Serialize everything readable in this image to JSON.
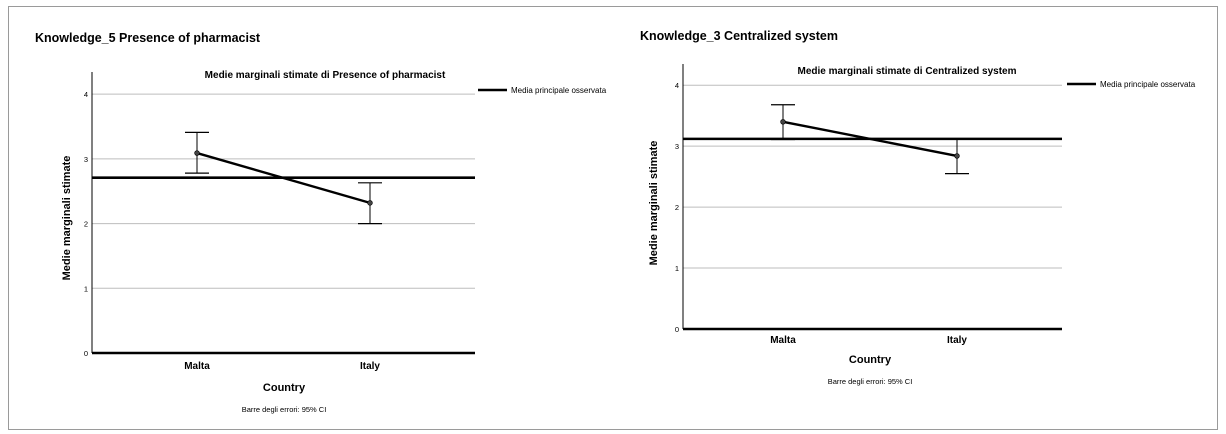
{
  "panels": [
    {
      "heading": "Knowledge_5 Presence of pharmacist",
      "caption": "Barre degli errori: 95% CI",
      "chart_data": {
        "type": "line",
        "title": "Medie marginali stimate di Presence of pharmacist",
        "xlabel": "Country",
        "ylabel": "Medie marginali stimate",
        "categories": [
          "Malta",
          "Italy"
        ],
        "series": [
          {
            "values": [
              3.09,
              2.32
            ],
            "ci_lower": [
              2.78,
              2.0
            ],
            "ci_upper": [
              3.41,
              2.63
            ]
          }
        ],
        "reference_line": {
          "name": "Media principale osservata",
          "value": 2.71
        },
        "ylim": [
          0,
          4.25
        ],
        "yticks": [
          0,
          1,
          2,
          3,
          4
        ],
        "grid": true,
        "legend_position": "top-right",
        "color": "#000000"
      }
    },
    {
      "heading": "Knowledge_3 Centralized system",
      "caption": "Barre degli errori: 95% CI",
      "chart_data": {
        "type": "line",
        "title": "Medie marginali stimate di Centralized system",
        "xlabel": "Country",
        "ylabel": "Medie marginali stimate",
        "categories": [
          "Malta",
          "Italy"
        ],
        "series": [
          {
            "values": [
              3.4,
              2.84
            ],
            "ci_lower": [
              3.11,
              2.55
            ],
            "ci_upper": [
              3.68,
              3.12
            ]
          }
        ],
        "reference_line": {
          "name": "Media principale osservata",
          "value": 3.12
        },
        "ylim": [
          0,
          4.25
        ],
        "yticks": [
          0,
          1,
          2,
          3,
          4
        ],
        "grid": true,
        "legend_position": "top-right",
        "color": "#000000"
      }
    }
  ]
}
